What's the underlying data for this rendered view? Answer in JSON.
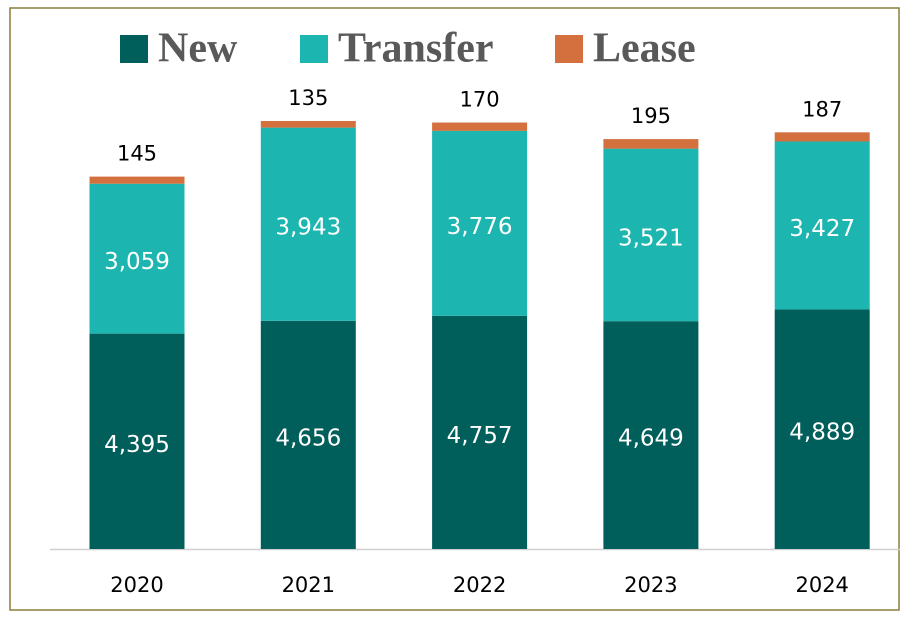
{
  "chart_data": {
    "type": "stacked_bar",
    "categories": [
      "2020",
      "2021",
      "2022",
      "2023",
      "2024"
    ],
    "series": [
      {
        "name": "New",
        "color": "#005e5b",
        "values": [
          4395,
          4656,
          4757,
          4649,
          4889
        ],
        "value_labels": [
          "4,395",
          "4,656",
          "4,757",
          "4,649",
          "4,889"
        ]
      },
      {
        "name": "Transfer",
        "color": "#1db5b0",
        "values": [
          3059,
          3943,
          3776,
          3521,
          3427
        ],
        "value_labels": [
          "3,059",
          "3,943",
          "3,776",
          "3,521",
          "3,427"
        ]
      },
      {
        "name": "Lease",
        "color": "#d4703e",
        "values": [
          145,
          135,
          170,
          195,
          187
        ]
      }
    ]
  }
}
